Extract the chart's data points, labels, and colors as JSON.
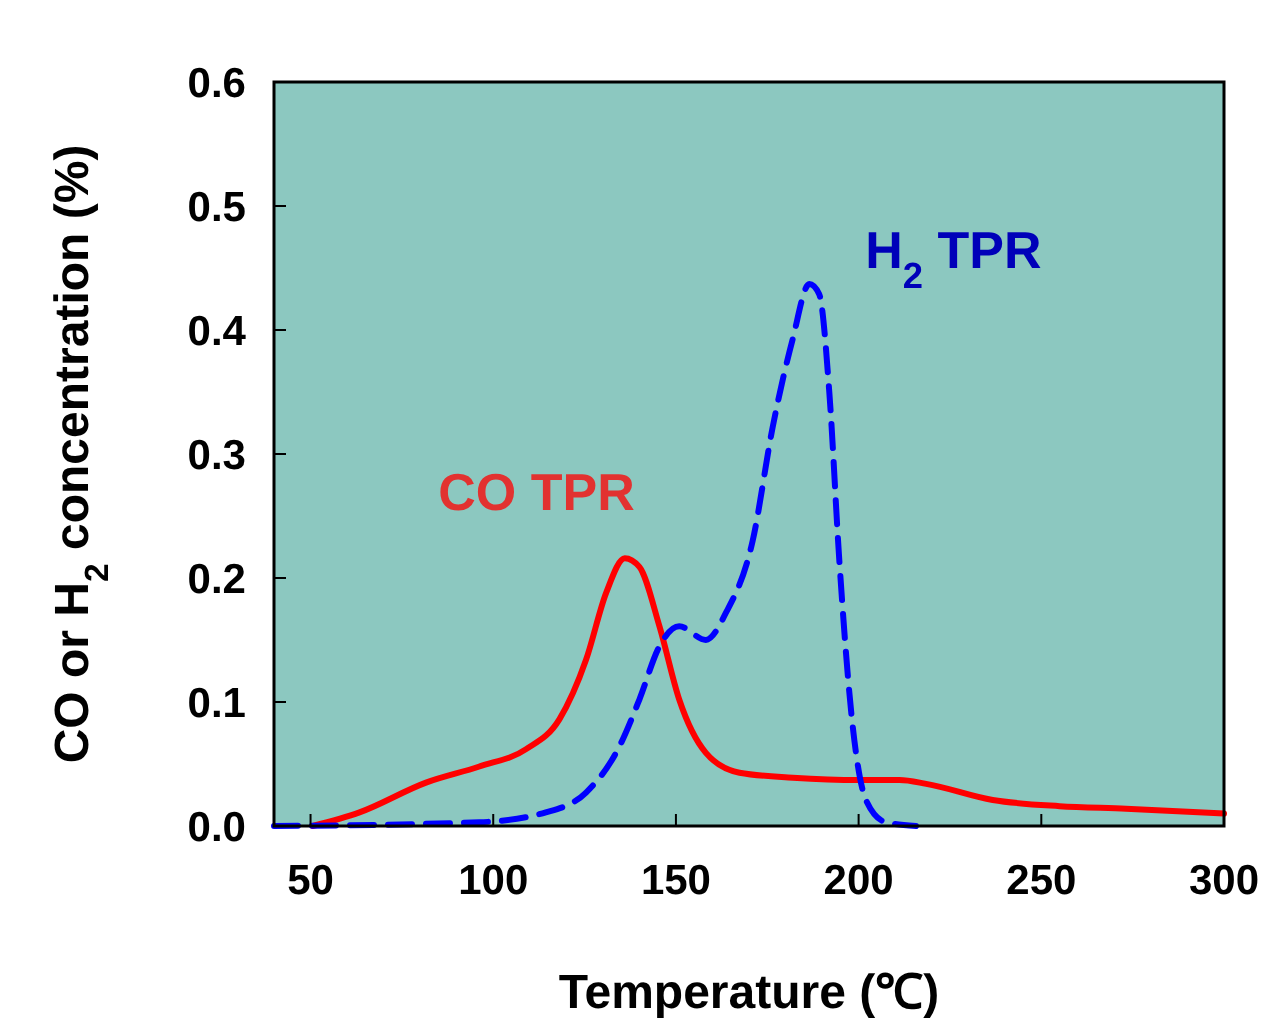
{
  "chart_data": {
    "type": "line",
    "xlabel": "Temperature (℃)",
    "ylabel": "CO or H$_{2}$ concentration (%)",
    "xlim": [
      40,
      300
    ],
    "ylim": [
      0,
      0.6
    ],
    "xticks": [
      50,
      100,
      150,
      200,
      250,
      300
    ],
    "yticks": [
      {
        "value": 0,
        "label": "0.0"
      },
      {
        "value": 0.1,
        "label": "0.1"
      },
      {
        "value": 0.2,
        "label": "0.2"
      },
      {
        "value": 0.3,
        "label": "0.3"
      },
      {
        "value": 0.4,
        "label": "0.4"
      },
      {
        "value": 0.5,
        "label": "0.5"
      },
      {
        "value": 0.6,
        "label": "0.6"
      }
    ],
    "grid": false,
    "series": [
      {
        "name": "CO TPR",
        "color": "#ff0000",
        "line_style": "solid",
        "x": [
          50.6,
          63.4,
          81.6,
          96.2,
          109,
          118.1,
          125.4,
          130.9,
          136,
          140,
          145.5,
          150.9,
          158.2,
          167.4,
          182,
          200.2,
          211.2,
          218.5,
          236.7,
          255,
          273.2,
          300
        ],
        "values": [
          0,
          0.011,
          0.035,
          0.048,
          0.062,
          0.086,
          0.134,
          0.188,
          0.216,
          0.209,
          0.161,
          0.102,
          0.059,
          0.043,
          0.039,
          0.037,
          0.037,
          0.034,
          0.021,
          0.016,
          0.014,
          0.01
        ]
      },
      {
        "name": "H$_{2}$ TPR",
        "color": "#0000ff",
        "line_style": "dashed",
        "x": [
          40,
          96.2,
          114.4,
          125.4,
          134.5,
          140,
          145.5,
          150.9,
          158.2,
          163.7,
          171,
          176.5,
          181.9,
          186.5,
          189.2,
          192,
          194.7,
          198.4,
          202,
          207.5,
          215.7
        ],
        "values": [
          0,
          0.003,
          0.011,
          0.027,
          0.064,
          0.102,
          0.145,
          0.161,
          0.15,
          0.172,
          0.23,
          0.322,
          0.392,
          0.437,
          0.429,
          0.349,
          0.215,
          0.08,
          0.021,
          0.003,
          0
        ]
      }
    ]
  }
}
